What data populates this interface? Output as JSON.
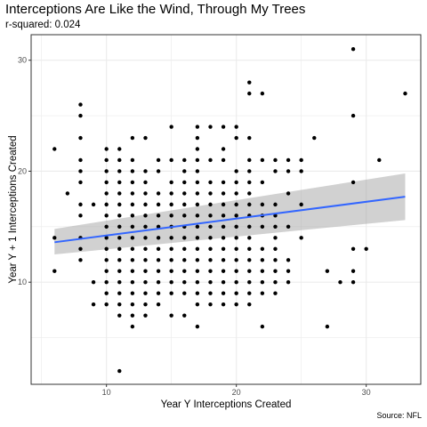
{
  "header": {
    "title": "Interceptions Are Like the Wind, Through My Trees",
    "subtitle": "r-squared: 0.024",
    "caption": "Source: NFL"
  },
  "chart_data": {
    "type": "scatter",
    "title": "Interceptions Are Like the Wind, Through My Trees",
    "subtitle": "r-squared: 0.024",
    "xlabel": "Year Y Interceptions Created",
    "ylabel": "Year Y + 1 Interceptions Created",
    "xlim": [
      4.2,
      34.2
    ],
    "ylim": [
      0.8,
      32.3
    ],
    "x_ticks": [
      10,
      20,
      30
    ],
    "y_ticks": [
      10,
      20,
      30
    ],
    "grid": true,
    "colors": {
      "points": "#000000",
      "trend_line": "#3366FF",
      "confidence_band": "#999999",
      "panel_border": "#333333",
      "grid_major": "#ebebeb"
    },
    "trend": {
      "method": "linear",
      "x_range": [
        6,
        33
      ],
      "y_start": 13.6,
      "y_end": 17.7,
      "ci_lower": [
        12.5,
        15.6
      ],
      "ci_upper": [
        14.8,
        19.8
      ]
    },
    "points": [
      [
        6,
        22
      ],
      [
        6,
        14
      ],
      [
        6,
        11
      ],
      [
        7,
        18
      ],
      [
        8,
        26
      ],
      [
        8,
        25
      ],
      [
        8,
        23
      ],
      [
        8,
        21
      ],
      [
        8,
        20
      ],
      [
        8,
        19
      ],
      [
        8,
        17
      ],
      [
        8,
        16
      ],
      [
        8,
        14
      ],
      [
        8,
        13
      ],
      [
        8,
        12
      ],
      [
        9,
        17
      ],
      [
        9,
        10
      ],
      [
        9,
        8
      ],
      [
        10,
        22
      ],
      [
        10,
        21
      ],
      [
        10,
        20
      ],
      [
        10,
        19
      ],
      [
        10,
        18
      ],
      [
        10,
        17
      ],
      [
        10,
        16
      ],
      [
        10,
        15
      ],
      [
        10,
        14
      ],
      [
        10,
        13
      ],
      [
        10,
        12
      ],
      [
        10,
        11
      ],
      [
        10,
        10
      ],
      [
        10,
        9
      ],
      [
        10,
        8
      ],
      [
        11,
        22
      ],
      [
        11,
        21
      ],
      [
        11,
        20
      ],
      [
        11,
        19
      ],
      [
        11,
        18
      ],
      [
        11,
        17
      ],
      [
        11,
        16
      ],
      [
        11,
        15
      ],
      [
        11,
        14
      ],
      [
        11,
        13
      ],
      [
        11,
        12
      ],
      [
        11,
        11
      ],
      [
        11,
        10
      ],
      [
        11,
        9
      ],
      [
        11,
        8
      ],
      [
        11,
        7
      ],
      [
        11,
        2
      ],
      [
        12,
        23
      ],
      [
        12,
        21
      ],
      [
        12,
        20
      ],
      [
        12,
        19
      ],
      [
        12,
        18
      ],
      [
        12,
        17
      ],
      [
        12,
        16
      ],
      [
        12,
        15
      ],
      [
        12,
        14
      ],
      [
        12,
        13
      ],
      [
        12,
        12
      ],
      [
        12,
        11
      ],
      [
        12,
        10
      ],
      [
        12,
        9
      ],
      [
        12,
        8
      ],
      [
        12,
        7
      ],
      [
        12,
        6
      ],
      [
        13,
        23
      ],
      [
        13,
        20
      ],
      [
        13,
        19
      ],
      [
        13,
        18
      ],
      [
        13,
        17
      ],
      [
        13,
        16
      ],
      [
        13,
        15
      ],
      [
        13,
        14
      ],
      [
        13,
        13
      ],
      [
        13,
        12
      ],
      [
        13,
        11
      ],
      [
        13,
        10
      ],
      [
        13,
        9
      ],
      [
        13,
        8
      ],
      [
        13,
        7
      ],
      [
        14,
        21
      ],
      [
        14,
        20
      ],
      [
        14,
        18
      ],
      [
        14,
        17
      ],
      [
        14,
        16
      ],
      [
        14,
        15
      ],
      [
        14,
        14
      ],
      [
        14,
        13
      ],
      [
        14,
        12
      ],
      [
        14,
        11
      ],
      [
        14,
        10
      ],
      [
        14,
        9
      ],
      [
        14,
        8
      ],
      [
        15,
        24
      ],
      [
        15,
        21
      ],
      [
        15,
        19
      ],
      [
        15,
        18
      ],
      [
        15,
        17
      ],
      [
        15,
        16
      ],
      [
        15,
        15
      ],
      [
        15,
        14
      ],
      [
        15,
        13
      ],
      [
        15,
        12
      ],
      [
        15,
        11
      ],
      [
        15,
        10
      ],
      [
        15,
        9
      ],
      [
        15,
        7
      ],
      [
        16,
        21
      ],
      [
        16,
        20
      ],
      [
        16,
        19
      ],
      [
        16,
        18
      ],
      [
        16,
        17
      ],
      [
        16,
        16
      ],
      [
        16,
        15
      ],
      [
        16,
        14
      ],
      [
        16,
        13
      ],
      [
        16,
        12
      ],
      [
        16,
        11
      ],
      [
        16,
        10
      ],
      [
        16,
        9
      ],
      [
        16,
        7
      ],
      [
        17,
        24
      ],
      [
        17,
        23
      ],
      [
        17,
        22
      ],
      [
        17,
        21
      ],
      [
        17,
        20
      ],
      [
        17,
        19
      ],
      [
        17,
        18
      ],
      [
        17,
        17
      ],
      [
        17,
        16
      ],
      [
        17,
        15
      ],
      [
        17,
        14
      ],
      [
        17,
        13
      ],
      [
        17,
        12
      ],
      [
        17,
        11
      ],
      [
        17,
        10
      ],
      [
        17,
        9
      ],
      [
        17,
        8
      ],
      [
        17,
        6
      ],
      [
        18,
        24
      ],
      [
        18,
        21
      ],
      [
        18,
        19
      ],
      [
        18,
        18
      ],
      [
        18,
        17
      ],
      [
        18,
        16
      ],
      [
        18,
        15
      ],
      [
        18,
        14
      ],
      [
        18,
        13
      ],
      [
        18,
        12
      ],
      [
        18,
        11
      ],
      [
        18,
        10
      ],
      [
        18,
        9
      ],
      [
        18,
        8
      ],
      [
        19,
        24
      ],
      [
        19,
        22
      ],
      [
        19,
        21
      ],
      [
        19,
        19
      ],
      [
        19,
        18
      ],
      [
        19,
        17
      ],
      [
        19,
        16
      ],
      [
        19,
        15
      ],
      [
        19,
        14
      ],
      [
        19,
        13
      ],
      [
        19,
        12
      ],
      [
        19,
        11
      ],
      [
        19,
        10
      ],
      [
        19,
        9
      ],
      [
        19,
        8
      ],
      [
        20,
        24
      ],
      [
        20,
        23
      ],
      [
        20,
        20
      ],
      [
        20,
        19
      ],
      [
        20,
        18
      ],
      [
        20,
        17
      ],
      [
        20,
        16
      ],
      [
        20,
        15
      ],
      [
        20,
        14
      ],
      [
        20,
        13
      ],
      [
        20,
        12
      ],
      [
        20,
        11
      ],
      [
        20,
        10
      ],
      [
        20,
        9
      ],
      [
        20,
        8
      ],
      [
        21,
        28
      ],
      [
        21,
        27
      ],
      [
        21,
        23
      ],
      [
        21,
        21
      ],
      [
        21,
        20
      ],
      [
        21,
        19
      ],
      [
        21,
        18
      ],
      [
        21,
        17
      ],
      [
        21,
        16
      ],
      [
        21,
        15
      ],
      [
        21,
        14
      ],
      [
        21,
        13
      ],
      [
        21,
        12
      ],
      [
        21,
        11
      ],
      [
        21,
        10
      ],
      [
        21,
        9
      ],
      [
        21,
        8
      ],
      [
        22,
        27
      ],
      [
        22,
        21
      ],
      [
        22,
        19
      ],
      [
        22,
        17
      ],
      [
        22,
        16
      ],
      [
        22,
        15
      ],
      [
        22,
        13
      ],
      [
        22,
        12
      ],
      [
        22,
        11
      ],
      [
        22,
        10
      ],
      [
        22,
        9
      ],
      [
        22,
        6
      ],
      [
        23,
        21
      ],
      [
        23,
        20
      ],
      [
        23,
        17
      ],
      [
        23,
        16
      ],
      [
        23,
        15
      ],
      [
        23,
        14
      ],
      [
        23,
        13
      ],
      [
        23,
        12
      ],
      [
        23,
        11
      ],
      [
        23,
        10
      ],
      [
        23,
        9
      ],
      [
        24,
        21
      ],
      [
        24,
        20
      ],
      [
        24,
        18
      ],
      [
        24,
        15
      ],
      [
        24,
        12
      ],
      [
        24,
        11
      ],
      [
        24,
        10
      ],
      [
        25,
        21
      ],
      [
        25,
        20
      ],
      [
        25,
        17
      ],
      [
        25,
        14
      ],
      [
        26,
        23
      ],
      [
        27,
        6
      ],
      [
        27,
        11
      ],
      [
        28,
        10
      ],
      [
        29,
        31
      ],
      [
        29,
        25
      ],
      [
        29,
        19
      ],
      [
        29,
        13
      ],
      [
        29,
        11
      ],
      [
        29,
        10
      ],
      [
        30,
        13
      ],
      [
        31,
        21
      ],
      [
        33,
        27
      ]
    ]
  }
}
